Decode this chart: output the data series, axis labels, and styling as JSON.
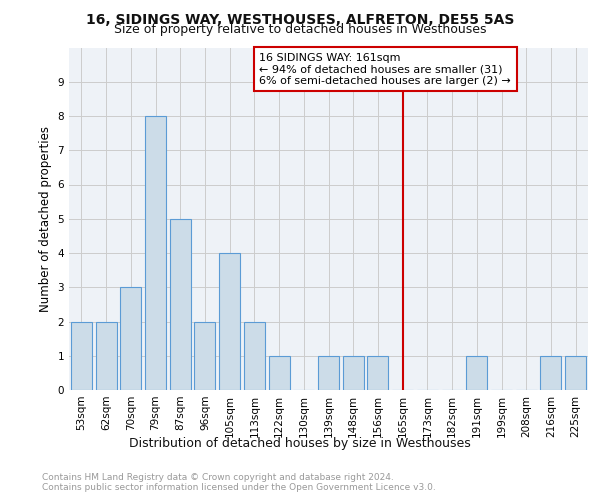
{
  "title1": "16, SIDINGS WAY, WESTHOUSES, ALFRETON, DE55 5AS",
  "title2": "Size of property relative to detached houses in Westhouses",
  "xlabel": "Distribution of detached houses by size in Westhouses",
  "ylabel": "Number of detached properties",
  "categories": [
    "53sqm",
    "62sqm",
    "70sqm",
    "79sqm",
    "87sqm",
    "96sqm",
    "105sqm",
    "113sqm",
    "122sqm",
    "130sqm",
    "139sqm",
    "148sqm",
    "156sqm",
    "165sqm",
    "173sqm",
    "182sqm",
    "191sqm",
    "199sqm",
    "208sqm",
    "216sqm",
    "225sqm"
  ],
  "values": [
    2,
    2,
    3,
    8,
    5,
    2,
    4,
    2,
    1,
    0,
    1,
    1,
    1,
    0,
    0,
    0,
    1,
    0,
    0,
    1,
    1
  ],
  "bar_color": "#ccdce8",
  "bar_edge_color": "#5b9bd5",
  "vline_idx": 13,
  "vline_color": "#cc0000",
  "annotation_text": "16 SIDINGS WAY: 161sqm\n← 94% of detached houses are smaller (31)\n6% of semi-detached houses are larger (2) →",
  "annotation_box_color": "#ffffff",
  "annotation_box_edge": "#cc0000",
  "ylim": [
    0,
    10
  ],
  "yticks": [
    0,
    1,
    2,
    3,
    4,
    5,
    6,
    7,
    8,
    9,
    10
  ],
  "footer": "Contains HM Land Registry data © Crown copyright and database right 2024.\nContains public sector information licensed under the Open Government Licence v3.0.",
  "footer_color": "#999999",
  "background_color": "#eef2f7",
  "grid_color": "#cccccc",
  "title1_fontsize": 10,
  "title2_fontsize": 9,
  "ylabel_fontsize": 8.5,
  "xlabel_fontsize": 9,
  "tick_fontsize": 7.5,
  "annotation_fontsize": 8,
  "footer_fontsize": 6.5
}
